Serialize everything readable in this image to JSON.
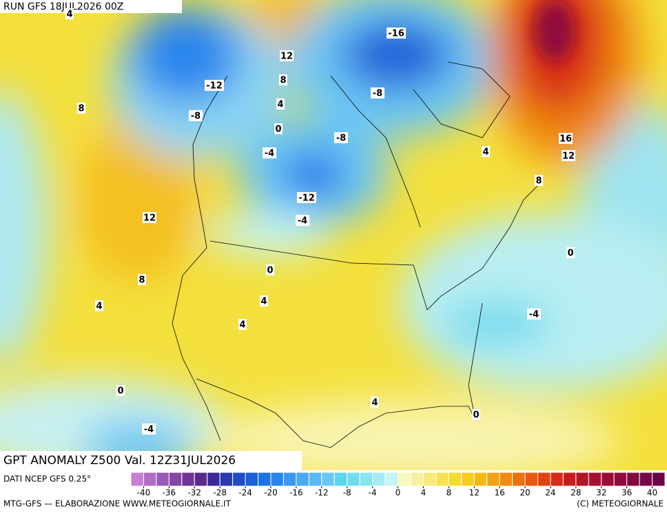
{
  "header": {
    "run": "RUN GFS 18JUL2026 00Z",
    "title": "GPT ANOMALY Z500 Val. 12Z31JUL2026"
  },
  "map": {
    "contour_labels": [
      4,
      12,
      8,
      4,
      0,
      8,
      -12,
      -8,
      -16,
      -8,
      -8,
      -4,
      -12,
      -4,
      4,
      8,
      16,
      12,
      12,
      8,
      4,
      0,
      4,
      4,
      0,
      -4,
      0,
      4,
      0,
      -4
    ]
  },
  "legend": {
    "source": "DATI NCEP GFS 0.25°",
    "lim": [
      -42,
      42
    ],
    "colors": [
      "#c77fd6",
      "#b06cc8",
      "#9a5ab8",
      "#8447a8",
      "#6e3598",
      "#5a2a8a",
      "#3a2a9a",
      "#2a3aae",
      "#1e4cc6",
      "#1a5fd8",
      "#1e72e6",
      "#2a86ee",
      "#3a98f2",
      "#4aa8f4",
      "#5ab8f6",
      "#6ac6f6",
      "#5cd4f0",
      "#70dcf0",
      "#88e4f2",
      "#a4ecf4",
      "#c4f4f6",
      "#f8f8c0",
      "#f8f0a0",
      "#f6ea78",
      "#f4e250",
      "#f4dc2a",
      "#f4cc20",
      "#f4b818",
      "#f2a214",
      "#f08a10",
      "#ee700e",
      "#ea5a0e",
      "#e4420e",
      "#d82a14",
      "#c81c1c",
      "#b41424",
      "#a8102c",
      "#9c0c34",
      "#900a3a",
      "#840840",
      "#780646",
      "#6c044a"
    ],
    "ticks": [
      -40,
      -36,
      -32,
      -28,
      -24,
      -20,
      -16,
      -12,
      -8,
      -4,
      0,
      4,
      8,
      12,
      16,
      20,
      24,
      28,
      32,
      36,
      40
    ]
  },
  "footer": {
    "left": "MTG-GFS — ELABORAZIONE WWW.METEOGIORNALE.IT",
    "right": "(C) METEOGIORNALE"
  }
}
